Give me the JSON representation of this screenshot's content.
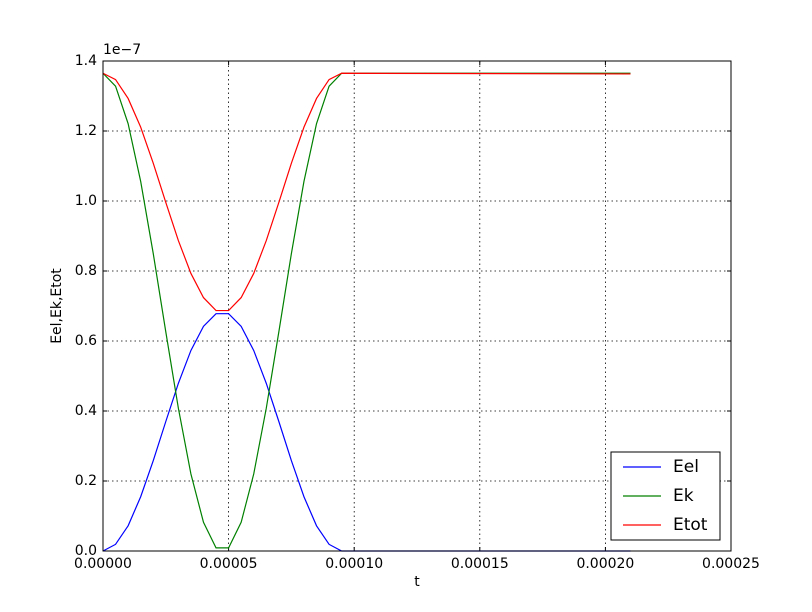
{
  "chart_data": {
    "type": "line",
    "xlabel": "t",
    "ylabel": "Eel,Ek,Etot",
    "y_offset_label": "1e−7",
    "x": [
      0,
      5e-06,
      1e-05,
      1.5e-05,
      2e-05,
      2.5e-05,
      3e-05,
      3.5e-05,
      4e-05,
      4.5e-05,
      5e-05,
      5.5e-05,
      6e-05,
      6.5e-05,
      7e-05,
      7.5e-05,
      8e-05,
      8.5e-05,
      9e-05,
      9.5e-05,
      0.00021
    ],
    "series": [
      {
        "name": "Eel",
        "color": "#0000ff",
        "values": [
          0,
          0.019,
          0.072,
          0.155,
          0.258,
          0.37,
          0.479,
          0.573,
          0.642,
          0.678,
          0.678,
          0.642,
          0.573,
          0.479,
          0.37,
          0.258,
          0.155,
          0.072,
          0.019,
          0,
          0
        ]
      },
      {
        "name": "Ek",
        "color": "#008000",
        "values": [
          1.365,
          1.328,
          1.221,
          1.056,
          0.85,
          0.626,
          0.408,
          0.22,
          0.082,
          0.009,
          0.009,
          0.082,
          0.22,
          0.408,
          0.626,
          0.85,
          1.056,
          1.221,
          1.328,
          1.365,
          1.365
        ]
      },
      {
        "name": "Etot",
        "color": "#ff0000",
        "values": [
          1.365,
          1.347,
          1.293,
          1.211,
          1.108,
          0.996,
          0.887,
          0.793,
          0.724,
          0.687,
          0.687,
          0.724,
          0.793,
          0.887,
          0.996,
          1.108,
          1.211,
          1.293,
          1.347,
          1.365,
          1.363
        ]
      }
    ],
    "xlim": [
      0,
      0.00025
    ],
    "xticks": [
      {
        "value": 0,
        "label": "0.00000"
      },
      {
        "value": 5e-05,
        "label": "0.00005"
      },
      {
        "value": 0.0001,
        "label": "0.00010"
      },
      {
        "value": 0.00015,
        "label": "0.00015"
      },
      {
        "value": 0.0002,
        "label": "0.00020"
      },
      {
        "value": 0.00025,
        "label": "0.00025"
      }
    ],
    "ylim": [
      0,
      1.4
    ],
    "yticks": [
      {
        "value": 0,
        "label": "0.0"
      },
      0.2,
      0.4,
      0.6,
      0.8,
      {
        "value": 1,
        "label": "1.0"
      },
      1.2,
      1.4
    ],
    "grid": true,
    "legend": "lower right"
  }
}
